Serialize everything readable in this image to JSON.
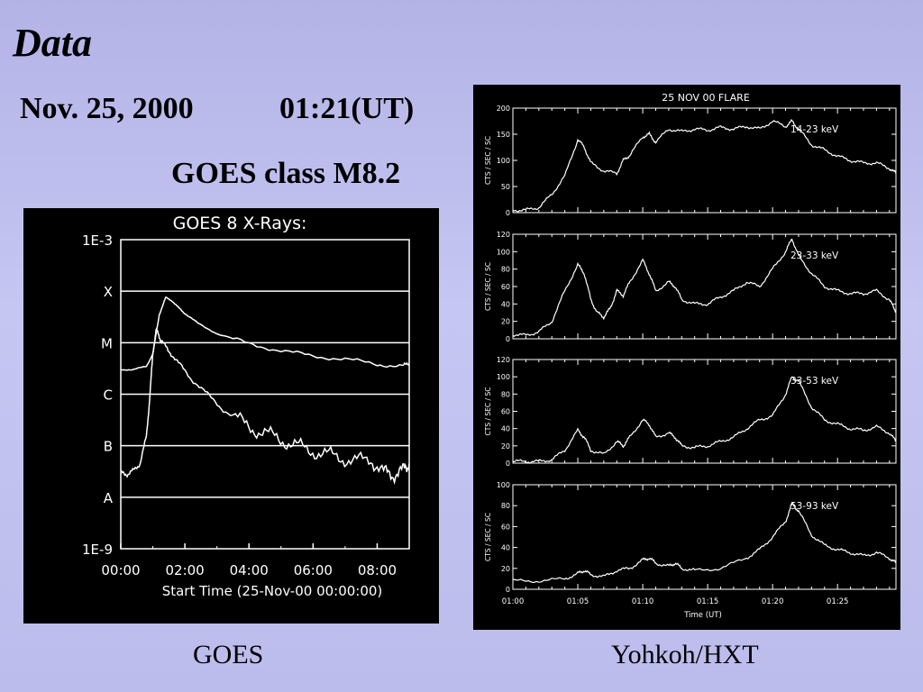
{
  "slide": {
    "heading": "Data",
    "date": "Nov. 25, 2000",
    "time": "01:21(UT)",
    "goes_class": "GOES class M8.2",
    "captions": {
      "left": "GOES",
      "right": "Yohkoh/HXT"
    }
  },
  "colors": {
    "background": "#bcbcee",
    "plot_background": "#000000",
    "plot_ink": "#ffffff"
  },
  "chart_data": [
    {
      "type": "line",
      "title": "GOES 8 X-Rays:",
      "xlabel": "Start Time (25-Nov-00 00:00:00)",
      "x_tick_labels": [
        "00:00",
        "02:00",
        "04:00",
        "06:00",
        "08:00"
      ],
      "y_scale": "log",
      "ylim": [
        1e-09,
        0.001
      ],
      "y_tick_labels": [
        "1E-3",
        "X",
        "M",
        "C",
        "B",
        "A",
        "1E-9"
      ],
      "grid_levels": [
        0.0001,
        1e-05,
        1e-06,
        1e-07,
        1e-08
      ],
      "x_unit": "hours since 00:00",
      "xlim": [
        0,
        9
      ],
      "series": [
        {
          "x": [
            0,
            0.4,
            0.8,
            1.0,
            1.2,
            1.4,
            1.6,
            1.8,
            2.0,
            2.4,
            3.0,
            4.0,
            5.0,
            6.0,
            7.0,
            8.0,
            8.8,
            9.0
          ],
          "y": [
            3e-06,
            3e-06,
            3.5e-06,
            6e-06,
            3.5e-05,
            7.5e-05,
            6.5e-05,
            4.8e-05,
            3.7e-05,
            2.4e-05,
            1.5e-05,
            9.5e-06,
            7e-06,
            5.5e-06,
            4.8e-06,
            3.8e-06,
            3.5e-06,
            4e-06
          ]
        },
        {
          "x": [
            0,
            0.2,
            0.4,
            0.6,
            0.8,
            0.9,
            1.0,
            1.1,
            1.2,
            1.3,
            1.5,
            1.8,
            2.2,
            2.7,
            3.2,
            3.8,
            4.3,
            4.8,
            5.3,
            5.8,
            6.3,
            6.8,
            7.3,
            7.8,
            8.2,
            8.5,
            8.8,
            9.0
          ],
          "y": [
            3e-08,
            2.8e-08,
            3.3e-08,
            4.5e-08,
            1.5e-07,
            8e-07,
            6e-06,
            1.8e-05,
            1.3e-05,
            1e-05,
            7e-06,
            4e-06,
            2e-06,
            1e-06,
            5e-07,
            2.8e-07,
            1.9e-07,
            1.5e-07,
            1.1e-07,
            8.5e-08,
            7e-08,
            6e-08,
            5e-08,
            5.5e-08,
            3e-08,
            2.8e-08,
            3.2e-08,
            4.5e-08
          ]
        }
      ]
    },
    {
      "type": "line",
      "title": "25 NOV 00 FLARE",
      "xlabel": "Time (UT)",
      "ylabel": "CTS / SEC / SC",
      "x_unit": "minutes after 01:00",
      "xlim": [
        0,
        29.5
      ],
      "x_ticks": [
        0,
        5,
        10,
        15,
        20,
        25
      ],
      "x_tick_labels": [
        "01:00",
        "01:05",
        "01:10",
        "01:15",
        "01:20",
        "01:25"
      ],
      "panels": [
        {
          "label": "14-23 keV",
          "ylim": [
            0,
            200
          ],
          "y_ticks": [
            0,
            50,
            100,
            150,
            200
          ],
          "x": [
            0,
            1,
            2,
            3,
            4,
            5,
            5.5,
            6,
            7,
            8,
            8.5,
            9,
            10,
            10.5,
            11,
            12,
            13,
            14,
            15,
            16,
            17,
            18,
            19,
            20,
            21,
            21.5,
            22,
            23,
            24,
            25,
            26,
            27,
            28,
            29,
            29.5
          ],
          "y": [
            5,
            5,
            10,
            35,
            70,
            140,
            125,
            95,
            80,
            75,
            100,
            110,
            145,
            150,
            135,
            160,
            155,
            160,
            158,
            163,
            160,
            165,
            160,
            175,
            165,
            175,
            160,
            130,
            120,
            108,
            100,
            95,
            95,
            85,
            75
          ]
        },
        {
          "label": "23-33 keV",
          "ylim": [
            0,
            120
          ],
          "y_ticks": [
            0,
            20,
            40,
            60,
            80,
            100,
            120
          ],
          "x": [
            0,
            1,
            2,
            3,
            4,
            5,
            5.5,
            6,
            6.5,
            7,
            7.5,
            8,
            8.5,
            9,
            10,
            10.5,
            11,
            12,
            12.5,
            13,
            14,
            15,
            16,
            17,
            18,
            19,
            20,
            21,
            21.5,
            22,
            23,
            24,
            25,
            26,
            27,
            28,
            29,
            29.5
          ],
          "y": [
            5,
            4,
            8,
            20,
            55,
            85,
            75,
            45,
            30,
            25,
            35,
            55,
            50,
            65,
            90,
            75,
            55,
            65,
            60,
            45,
            40,
            40,
            48,
            55,
            65,
            60,
            80,
            100,
            115,
            95,
            75,
            60,
            55,
            52,
            52,
            55,
            45,
            30
          ]
        },
        {
          "label": "33-53 keV",
          "ylim": [
            0,
            120
          ],
          "y_ticks": [
            0,
            20,
            40,
            60,
            80,
            100,
            120
          ],
          "x": [
            0,
            1,
            2,
            3,
            4,
            5,
            5.5,
            6,
            7,
            8,
            8.5,
            9,
            10,
            10.5,
            11,
            12,
            12.5,
            13,
            14,
            15,
            16,
            17,
            18,
            19,
            20,
            21,
            21.5,
            22,
            23,
            24,
            25,
            26,
            27,
            28,
            29,
            29.5
          ],
          "y": [
            2,
            2,
            2,
            4,
            15,
            38,
            30,
            15,
            10,
            25,
            20,
            30,
            50,
            45,
            30,
            35,
            30,
            20,
            18,
            20,
            25,
            30,
            40,
            50,
            55,
            80,
            100,
            95,
            65,
            50,
            45,
            40,
            38,
            42,
            35,
            25
          ]
        },
        {
          "label": "53-93 keV",
          "ylim": [
            0,
            100
          ],
          "y_ticks": [
            0,
            20,
            40,
            60,
            80,
            100
          ],
          "x": [
            0,
            2,
            4,
            5,
            5.5,
            6,
            7,
            8,
            9,
            10,
            10.5,
            11,
            12,
            12.5,
            13,
            14,
            16,
            18,
            19,
            20,
            21,
            21.5,
            22,
            23,
            24,
            25,
            26,
            27,
            28,
            29,
            29.5
          ],
          "y": [
            8,
            8,
            10,
            15,
            18,
            14,
            12,
            18,
            20,
            28,
            30,
            25,
            22,
            25,
            20,
            18,
            20,
            30,
            38,
            50,
            65,
            82,
            75,
            52,
            42,
            38,
            35,
            32,
            35,
            30,
            25
          ]
        }
      ]
    }
  ]
}
